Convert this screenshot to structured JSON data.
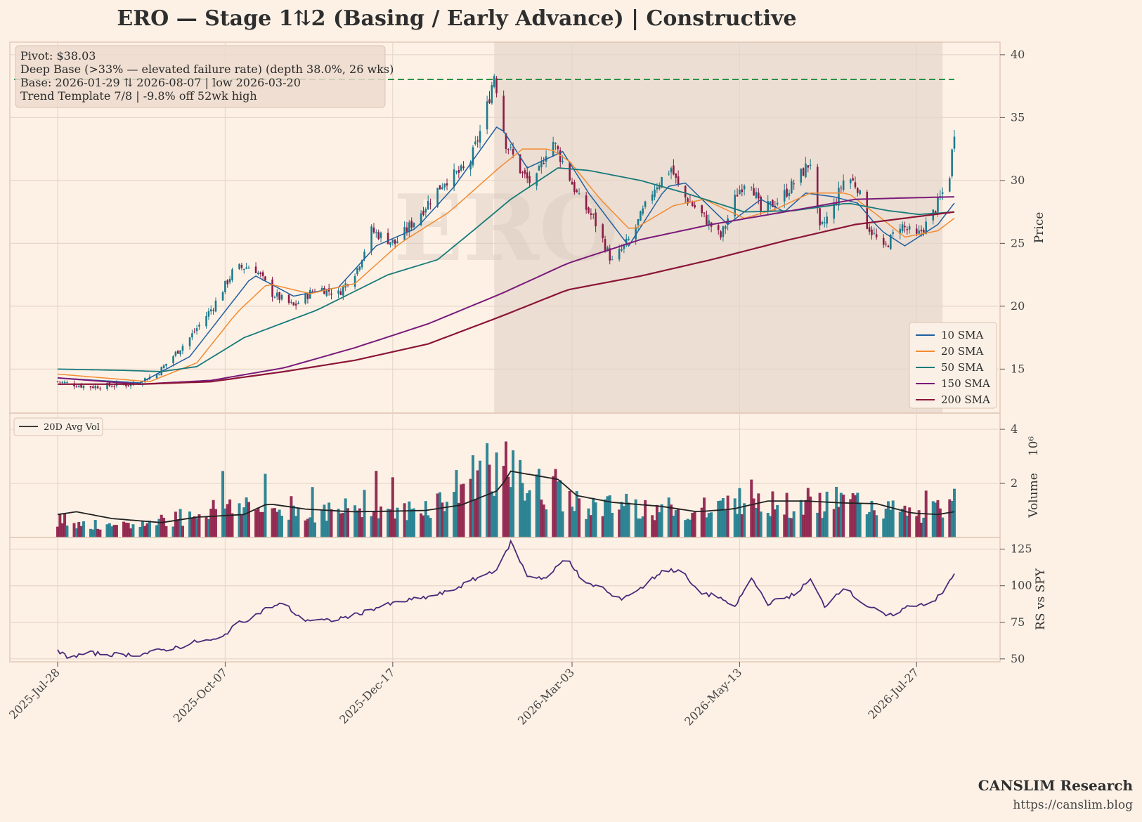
{
  "title": "ERO  —  Stage 1⇅2 (Basing / Early Advance)  |  Constructive",
  "watermark": "ERO",
  "info_box": [
    "Pivot: $38.03",
    "Deep Base (>33% — elevated failure rate)  (depth 38.0%, 26 wks)",
    "Base: 2026-01-29 ⇅ 2026-08-07  |  low 2026-03-20",
    "Trend Template 7/8  |  -9.8% off 52wk high"
  ],
  "footer": {
    "brand": "CANSLIM Research",
    "url": "https://canslim.blog"
  },
  "colors": {
    "background": "#fdf1e6",
    "up_candle": "#1b7a8c",
    "down_candle": "#8b1a45",
    "sma10": "#1f5f9e",
    "sma20": "#f28b30",
    "sma50": "#187a7a",
    "sma150": "#7a1a7a",
    "sma200": "#8b1538",
    "pivot_line": "#1a8a3a",
    "rs_line": "#4a2a7a",
    "avg_vol_line": "#222222",
    "base_shade": "#c8b4a8"
  },
  "chart_data": [
    {
      "type": "candlestick",
      "ylabel": "Price",
      "ylim": [
        11.5,
        41
      ],
      "yticks": [
        15,
        20,
        25,
        30,
        35,
        40
      ],
      "pivot": 38.03,
      "base_period": [
        "2026-01-29",
        "2026-08-07"
      ],
      "x_start": "2025-07-28",
      "x_end": "2026-08-12",
      "xticks": [
        "2025-Jul-28",
        "2025-Oct-07",
        "2025-Dec-17",
        "2026-Mar-03",
        "2026-May-13",
        "2026-Jul-27"
      ],
      "price_keypoints": [
        [
          "2025-07-28",
          14.0
        ],
        [
          "2025-08-10",
          13.6
        ],
        [
          "2025-08-29",
          13.8
        ],
        [
          "2025-09-08",
          14.6
        ],
        [
          "2025-09-22",
          17.5
        ],
        [
          "2025-10-02",
          20.0
        ],
        [
          "2025-10-11",
          23.0
        ],
        [
          "2025-10-19",
          23.2
        ],
        [
          "2025-10-27",
          21.0
        ],
        [
          "2025-11-05",
          20.0
        ],
        [
          "2025-11-15",
          21.5
        ],
        [
          "2025-11-24",
          21.0
        ],
        [
          "2025-12-02",
          23.0
        ],
        [
          "2025-12-08",
          26.0
        ],
        [
          "2025-12-18",
          25.0
        ],
        [
          "2025-12-27",
          27.0
        ],
        [
          "2026-01-08",
          30.0
        ],
        [
          "2026-01-18",
          31.0
        ],
        [
          "2026-01-25",
          35.0
        ],
        [
          "2026-01-29",
          38.5
        ],
        [
          "2026-02-03",
          33.0
        ],
        [
          "2026-02-10",
          30.5
        ],
        [
          "2026-02-15",
          29.5
        ],
        [
          "2026-02-22",
          33.5
        ],
        [
          "2026-02-27",
          31.5
        ],
        [
          "2026-03-06",
          28.5
        ],
        [
          "2026-03-12",
          27.0
        ],
        [
          "2026-03-20",
          23.5
        ],
        [
          "2026-03-28",
          25.5
        ],
        [
          "2026-04-07",
          29.5
        ],
        [
          "2026-04-14",
          31.0
        ],
        [
          "2026-04-18",
          29.0
        ],
        [
          "2026-04-26",
          27.5
        ],
        [
          "2026-05-05",
          25.5
        ],
        [
          "2026-05-12",
          29.0
        ],
        [
          "2026-05-17",
          30.5
        ],
        [
          "2026-05-22",
          27.5
        ],
        [
          "2026-05-30",
          28.5
        ],
        [
          "2026-06-06",
          30.0
        ],
        [
          "2026-06-12",
          31.5
        ],
        [
          "2026-06-16",
          26.0
        ],
        [
          "2026-06-22",
          28.0
        ],
        [
          "2026-06-27",
          30.5
        ],
        [
          "2026-07-02",
          29.5
        ],
        [
          "2026-07-06",
          26.5
        ],
        [
          "2026-07-13",
          24.5
        ],
        [
          "2026-07-20",
          26.5
        ],
        [
          "2026-07-27",
          25.5
        ],
        [
          "2026-08-02",
          27.0
        ],
        [
          "2026-08-07",
          29.0
        ],
        [
          "2026-08-10",
          30.5
        ],
        [
          "2026-08-12",
          34.0
        ]
      ],
      "series": [
        {
          "name": "10 SMA",
          "keypoints": [
            [
              "2025-07-28",
              14.3
            ],
            [
              "2025-09-01",
              13.9
            ],
            [
              "2025-09-22",
              16.0
            ],
            [
              "2025-10-19",
              22.5
            ],
            [
              "2025-11-05",
              20.8
            ],
            [
              "2025-11-24",
              21.5
            ],
            [
              "2025-12-10",
              24.8
            ],
            [
              "2025-12-27",
              26.2
            ],
            [
              "2026-01-12",
              29.5
            ],
            [
              "2026-01-31",
              34.5
            ],
            [
              "2026-02-12",
              31.0
            ],
            [
              "2026-02-27",
              32.3
            ],
            [
              "2026-03-10",
              29.0
            ],
            [
              "2026-03-27",
              24.8
            ],
            [
              "2026-04-12",
              29.5
            ],
            [
              "2026-04-20",
              29.8
            ],
            [
              "2026-05-08",
              26.5
            ],
            [
              "2026-05-22",
              28.5
            ],
            [
              "2026-06-01",
              27.5
            ],
            [
              "2026-06-10",
              29.0
            ],
            [
              "2026-06-22",
              28.7
            ],
            [
              "2026-07-02",
              28.2
            ],
            [
              "2026-07-12",
              26.0
            ],
            [
              "2026-07-22",
              24.8
            ],
            [
              "2026-08-05",
              26.5
            ],
            [
              "2026-08-12",
              28.2
            ]
          ]
        },
        {
          "name": "20 SMA",
          "keypoints": [
            [
              "2025-07-28",
              14.6
            ],
            [
              "2025-09-05",
              14.0
            ],
            [
              "2025-09-25",
              15.5
            ],
            [
              "2025-10-12",
              19.5
            ],
            [
              "2025-10-25",
              21.8
            ],
            [
              "2025-11-12",
              21.0
            ],
            [
              "2025-12-01",
              21.8
            ],
            [
              "2025-12-20",
              25.0
            ],
            [
              "2026-01-10",
              27.5
            ],
            [
              "2026-01-31",
              31.0
            ],
            [
              "2026-02-10",
              32.5
            ],
            [
              "2026-02-22",
              32.5
            ],
            [
              "2026-03-02",
              31.5
            ],
            [
              "2026-03-15",
              28.5
            ],
            [
              "2026-03-28",
              26.0
            ],
            [
              "2026-04-15",
              28.0
            ],
            [
              "2026-04-28",
              28.5
            ],
            [
              "2026-05-15",
              27.0
            ],
            [
              "2026-05-28",
              27.7
            ],
            [
              "2026-06-12",
              29.0
            ],
            [
              "2026-06-28",
              29.0
            ],
            [
              "2026-07-10",
              27.3
            ],
            [
              "2026-07-22",
              25.5
            ],
            [
              "2026-08-05",
              26.0
            ],
            [
              "2026-08-12",
              27.0
            ]
          ]
        },
        {
          "name": "50 SMA",
          "keypoints": [
            [
              "2025-07-28",
              15.0
            ],
            [
              "2025-08-25",
              14.9
            ],
            [
              "2025-09-10",
              14.8
            ],
            [
              "2025-09-25",
              15.2
            ],
            [
              "2025-10-15",
              17.5
            ],
            [
              "2025-11-15",
              19.7
            ],
            [
              "2025-12-15",
              22.5
            ],
            [
              "2026-01-05",
              23.7
            ],
            [
              "2026-01-20",
              26.0
            ],
            [
              "2026-02-05",
              28.5
            ],
            [
              "2026-02-25",
              31.0
            ],
            [
              "2026-03-10",
              30.8
            ],
            [
              "2026-04-01",
              30.0
            ],
            [
              "2026-04-20",
              29.0
            ],
            [
              "2026-05-15",
              27.5
            ],
            [
              "2026-06-05",
              27.6
            ],
            [
              "2026-06-28",
              28.2
            ],
            [
              "2026-07-15",
              27.6
            ],
            [
              "2026-07-28",
              27.3
            ],
            [
              "2026-08-12",
              27.5
            ]
          ]
        },
        {
          "name": "150 SMA",
          "keypoints": [
            [
              "2025-07-28",
              14.3
            ],
            [
              "2025-09-01",
              13.8
            ],
            [
              "2025-10-01",
              14.1
            ],
            [
              "2025-11-01",
              15.1
            ],
            [
              "2025-12-01",
              16.7
            ],
            [
              "2026-01-01",
              18.6
            ],
            [
              "2026-02-01",
              21.0
            ],
            [
              "2026-03-01",
              23.4
            ],
            [
              "2026-04-01",
              25.3
            ],
            [
              "2026-05-01",
              26.5
            ],
            [
              "2026-06-01",
              27.5
            ],
            [
              "2026-07-01",
              28.5
            ],
            [
              "2026-07-20",
              28.6
            ],
            [
              "2026-08-12",
              28.7
            ]
          ]
        },
        {
          "name": "200 SMA",
          "keypoints": [
            [
              "2025-07-28",
              13.8
            ],
            [
              "2025-09-01",
              13.8
            ],
            [
              "2025-10-01",
              14.0
            ],
            [
              "2025-11-01",
              14.8
            ],
            [
              "2025-12-01",
              15.7
            ],
            [
              "2026-01-01",
              17.0
            ],
            [
              "2026-02-01",
              19.2
            ],
            [
              "2026-03-01",
              21.3
            ],
            [
              "2026-04-01",
              22.4
            ],
            [
              "2026-05-01",
              23.7
            ],
            [
              "2026-06-01",
              25.2
            ],
            [
              "2026-07-01",
              26.5
            ],
            [
              "2026-08-12",
              27.5
            ]
          ]
        }
      ]
    },
    {
      "type": "bar",
      "ylabel": "Volume",
      "scale_label": "10⁶",
      "ylim": [
        0,
        4.6
      ],
      "yticks": [
        2,
        4
      ],
      "avg_label": "20D Avg Vol",
      "volume_keypoints": [
        [
          "2025-07-28",
          0.7
        ],
        [
          "2025-08-20",
          0.35
        ],
        [
          "2025-09-10",
          0.6
        ],
        [
          "2025-09-25",
          0.9
        ],
        [
          "2025-10-10",
          1.3
        ],
        [
          "2025-10-25",
          1.0
        ],
        [
          "2025-11-10",
          1.0
        ],
        [
          "2025-11-25",
          0.9
        ],
        [
          "2025-12-05",
          1.4
        ],
        [
          "2025-12-20",
          0.9
        ],
        [
          "2026-01-05",
          1.3
        ],
        [
          "2026-01-15",
          1.9
        ],
        [
          "2026-01-25",
          2.8
        ],
        [
          "2026-01-31",
          2.6
        ],
        [
          "2026-02-10",
          2.1
        ],
        [
          "2026-02-25",
          1.5
        ],
        [
          "2026-03-15",
          1.1
        ],
        [
          "2026-03-31",
          1.2
        ],
        [
          "2026-04-15",
          1.0
        ],
        [
          "2026-05-01",
          0.9
        ],
        [
          "2026-05-15",
          1.6
        ],
        [
          "2026-06-01",
          1.2
        ],
        [
          "2026-06-15",
          1.3
        ],
        [
          "2026-07-01",
          1.3
        ],
        [
          "2026-07-15",
          1.0
        ],
        [
          "2026-07-30",
          0.8
        ],
        [
          "2026-08-07",
          1.1
        ],
        [
          "2026-08-12",
          2.6
        ]
      ],
      "avg_keypoints": [
        [
          "2025-07-28",
          0.85
        ],
        [
          "2025-08-05",
          0.95
        ],
        [
          "2025-08-20",
          0.7
        ],
        [
          "2025-09-10",
          0.55
        ],
        [
          "2025-09-25",
          0.75
        ],
        [
          "2025-10-15",
          0.85
        ],
        [
          "2025-10-25",
          1.25
        ],
        [
          "2025-11-10",
          1.05
        ],
        [
          "2025-11-30",
          0.95
        ],
        [
          "2025-12-15",
          0.97
        ],
        [
          "2025-12-31",
          1.0
        ],
        [
          "2026-01-15",
          1.2
        ],
        [
          "2026-01-31",
          1.75
        ],
        [
          "2026-02-05",
          2.45
        ],
        [
          "2026-02-15",
          2.3
        ],
        [
          "2026-02-25",
          2.15
        ],
        [
          "2026-03-05",
          1.55
        ],
        [
          "2026-03-20",
          1.3
        ],
        [
          "2026-04-10",
          1.15
        ],
        [
          "2026-04-25",
          0.95
        ],
        [
          "2026-05-10",
          1.05
        ],
        [
          "2026-05-25",
          1.35
        ],
        [
          "2026-06-10",
          1.35
        ],
        [
          "2026-06-25",
          1.28
        ],
        [
          "2026-07-10",
          1.25
        ],
        [
          "2026-07-25",
          0.9
        ],
        [
          "2026-08-05",
          0.85
        ],
        [
          "2026-08-12",
          0.95
        ]
      ]
    },
    {
      "type": "line",
      "ylabel": "RS vs SPY",
      "ylim": [
        48,
        133
      ],
      "yticks": [
        50,
        75,
        100,
        125
      ],
      "keypoints": [
        [
          "2025-07-28",
          55
        ],
        [
          "2025-08-02",
          51
        ],
        [
          "2025-08-10",
          54
        ],
        [
          "2025-08-20",
          53
        ],
        [
          "2025-09-01",
          53
        ],
        [
          "2025-09-10",
          56
        ],
        [
          "2025-09-20",
          59
        ],
        [
          "2025-09-25",
          62
        ],
        [
          "2025-10-05",
          63
        ],
        [
          "2025-10-10",
          72
        ],
        [
          "2025-10-20",
          80
        ],
        [
          "2025-10-25",
          85
        ],
        [
          "2025-11-01",
          88
        ],
        [
          "2025-11-08",
          77
        ],
        [
          "2025-11-20",
          76
        ],
        [
          "2025-12-01",
          80
        ],
        [
          "2025-12-10",
          85
        ],
        [
          "2025-12-20",
          89
        ],
        [
          "2025-12-31",
          92
        ],
        [
          "2026-01-10",
          96
        ],
        [
          "2026-01-20",
          104
        ],
        [
          "2026-01-31",
          112
        ],
        [
          "2026-02-05",
          130
        ],
        [
          "2026-02-12",
          107
        ],
        [
          "2026-02-20",
          105
        ],
        [
          "2026-03-01",
          120
        ],
        [
          "2026-03-08",
          101
        ],
        [
          "2026-03-15",
          100
        ],
        [
          "2026-03-22",
          90
        ],
        [
          "2026-04-01",
          98
        ],
        [
          "2026-04-10",
          110
        ],
        [
          "2026-04-18",
          111
        ],
        [
          "2026-04-25",
          96
        ],
        [
          "2026-05-05",
          92
        ],
        [
          "2026-05-10",
          83
        ],
        [
          "2026-05-18",
          105
        ],
        [
          "2026-05-25",
          88
        ],
        [
          "2026-06-05",
          94
        ],
        [
          "2026-06-12",
          104
        ],
        [
          "2026-06-18",
          86
        ],
        [
          "2026-06-26",
          99
        ],
        [
          "2026-07-05",
          87
        ],
        [
          "2026-07-15",
          79
        ],
        [
          "2026-07-25",
          87
        ],
        [
          "2026-08-02",
          88
        ],
        [
          "2026-08-07",
          95
        ],
        [
          "2026-08-12",
          108
        ]
      ]
    }
  ]
}
